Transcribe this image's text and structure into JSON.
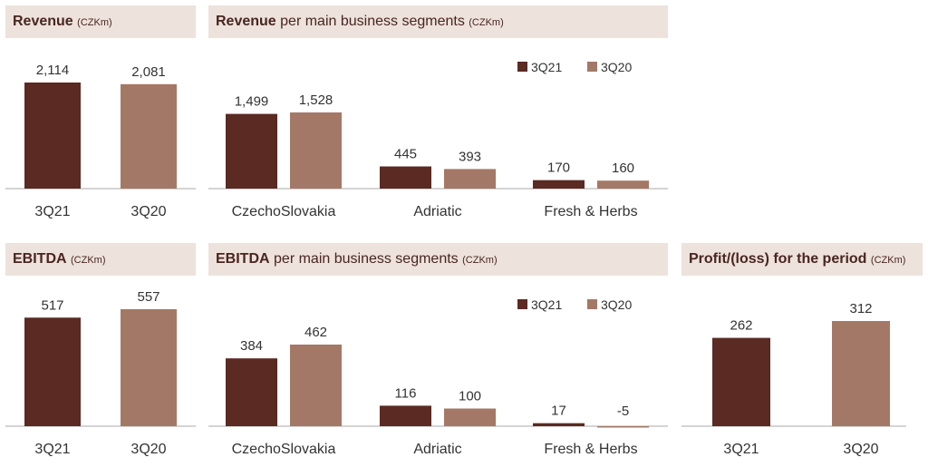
{
  "colors": {
    "q21": "#5a2a23",
    "q20": "#a47866",
    "header_bg": "#ede2dc",
    "axis": "#aaaaaa"
  },
  "headers": {
    "revenue": {
      "bold": "Revenue",
      "rest": "",
      "unit": "(CZKm)"
    },
    "revenue_segments": {
      "bold": "Revenue",
      "rest": "per main business segments",
      "unit": "(CZKm)"
    },
    "ebitda": {
      "bold": "EBITDA",
      "rest": "",
      "unit": "(CZKm)"
    },
    "ebitda_segments": {
      "bold": "EBITDA",
      "rest": "per main business segments",
      "unit": "(CZKm)"
    },
    "profit": {
      "bold": "Profit/(loss) for the period",
      "rest": "",
      "unit": "(CZKm)"
    }
  },
  "chart_data": [
    {
      "id": "revenue",
      "type": "bar",
      "categories": [
        "3Q21",
        "3Q20"
      ],
      "values": [
        2114,
        2081
      ],
      "labels": [
        "2,114",
        "2,081"
      ],
      "ylim": [
        0,
        2114
      ]
    },
    {
      "id": "revenue_segments",
      "type": "bar",
      "categories": [
        "CzechoSlovakia",
        "Adriatic",
        "Fresh & Herbs"
      ],
      "series": [
        {
          "name": "3Q21",
          "values": [
            1499,
            445,
            170
          ],
          "labels": [
            "1,499",
            "445",
            "170"
          ]
        },
        {
          "name": "3Q20",
          "values": [
            1528,
            393,
            160
          ],
          "labels": [
            "1,528",
            "393",
            "160"
          ]
        }
      ],
      "legend": "top-right"
    },
    {
      "id": "ebitda",
      "type": "bar",
      "categories": [
        "3Q21",
        "3Q20"
      ],
      "values": [
        517,
        557
      ],
      "labels": [
        "517",
        "557"
      ]
    },
    {
      "id": "ebitda_segments",
      "type": "bar",
      "categories": [
        "CzechoSlovakia",
        "Adriatic",
        "Fresh & Herbs"
      ],
      "series": [
        {
          "name": "3Q21",
          "values": [
            384,
            116,
            17
          ],
          "labels": [
            "384",
            "116",
            "17"
          ]
        },
        {
          "name": "3Q20",
          "values": [
            462,
            100,
            -5
          ],
          "labels": [
            "462",
            "100",
            "-5"
          ]
        }
      ],
      "legend": "top-right"
    },
    {
      "id": "profit",
      "type": "bar",
      "categories": [
        "3Q21",
        "3Q20"
      ],
      "values": [
        262,
        312
      ],
      "labels": [
        "262",
        "312"
      ]
    }
  ]
}
